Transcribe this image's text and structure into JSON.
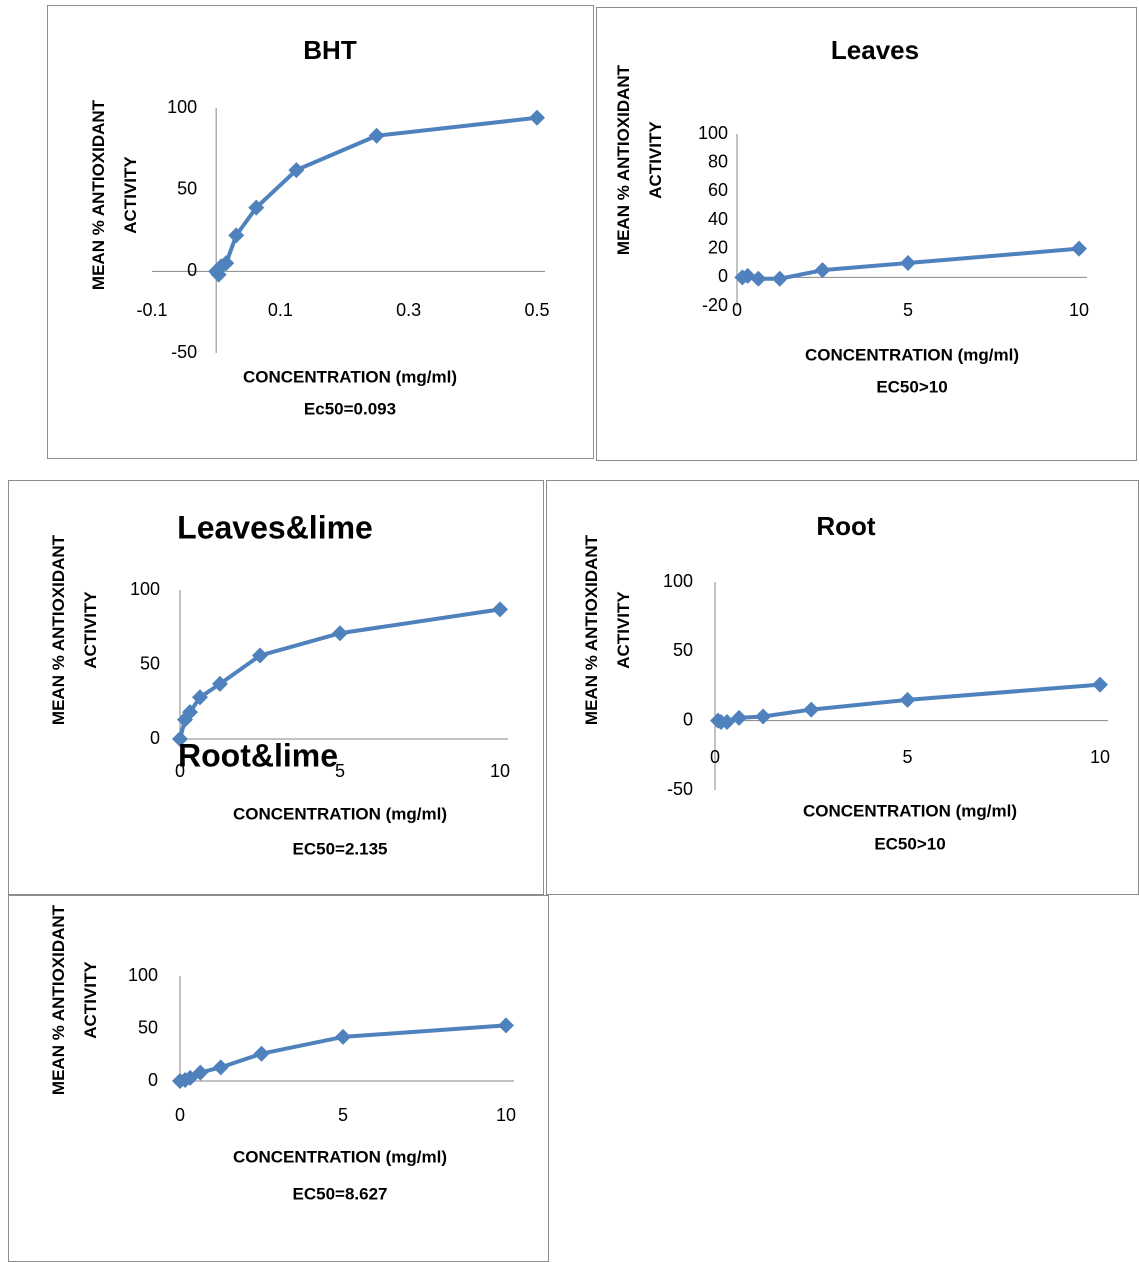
{
  "chart_data": [
    {
      "type": "line",
      "title": "BHT",
      "x_label": "CONCENTRATION (mg/ml)",
      "annotation": "Ec50=0.093",
      "y_label": "MEAN % ANTIOXIDANT ACTIVITY",
      "x": [
        0,
        0.0039,
        0.0078,
        0.0156,
        0.03125,
        0.0625,
        0.125,
        0.25,
        0.5
      ],
      "values": [
        0,
        -2,
        3,
        5,
        22,
        39,
        62,
        83,
        94
      ],
      "color": "#4f81bd",
      "xlim": [
        -0.1,
        0.5
      ],
      "xticks": [
        -0.1,
        0.1,
        0.3,
        0.5
      ],
      "ylim": [
        -50,
        100
      ],
      "yticks": [
        -50,
        0,
        50,
        100
      ]
    },
    {
      "type": "line",
      "title": "Leaves",
      "x_label": "CONCENTRATION (mg/ml)",
      "annotation": "EC50>10",
      "y_label": "MEAN % ANTIOXIDANT ACTIVITY",
      "x": [
        0.156,
        0.3125,
        0.625,
        1.25,
        2.5,
        5,
        10
      ],
      "values": [
        0,
        1,
        -1,
        -1,
        5,
        10,
        20
      ],
      "color": "#4f81bd",
      "xlim": [
        0,
        10
      ],
      "xticks": [
        0,
        5,
        10
      ],
      "ylim": [
        -20,
        100
      ],
      "yticks": [
        -20,
        0,
        20,
        40,
        60,
        80,
        100
      ]
    },
    {
      "type": "line",
      "title": "Leaves&lime",
      "x_label": "CONCENTRATION (mg/ml)",
      "annotation": "EC50=2.135",
      "y_label": "MEAN % ANTIOXIDANT ACTIVITY",
      "x": [
        0,
        0.156,
        0.3125,
        0.625,
        1.25,
        2.5,
        5,
        10
      ],
      "values": [
        0,
        13,
        18,
        28,
        37,
        56,
        71,
        87
      ],
      "color": "#4f81bd",
      "xlim": [
        0,
        10
      ],
      "xticks": [
        0,
        5,
        10
      ],
      "ylim": [
        0,
        100
      ],
      "yticks": [
        0,
        50,
        100
      ]
    },
    {
      "type": "line",
      "title": "Root",
      "x_label": "CONCENTRATION (mg/ml)",
      "annotation": "EC50>10",
      "y_label": "MEAN % ANTIOXIDANT ACTIVITY",
      "x": [
        0.078,
        0.156,
        0.3125,
        0.625,
        1.25,
        2.5,
        5,
        10
      ],
      "values": [
        0,
        -1,
        -1,
        2,
        3,
        8,
        15,
        26
      ],
      "color": "#4f81bd",
      "xlim": [
        0,
        10
      ],
      "xticks": [
        0,
        5,
        10
      ],
      "ylim": [
        -50,
        100
      ],
      "yticks": [
        -50,
        0,
        50,
        100
      ]
    },
    {
      "type": "line",
      "title": "Root&lime",
      "x_label": "CONCENTRATION (mg/ml)",
      "annotation": "EC50=8.627",
      "y_label": "MEAN % ANTIOXIDANT ACTIVITY",
      "x": [
        0,
        0.156,
        0.3125,
        0.625,
        1.25,
        2.5,
        5,
        10
      ],
      "values": [
        0,
        1,
        3,
        8,
        13,
        26,
        42,
        53
      ],
      "color": "#4f81bd",
      "xlim": [
        0,
        10
      ],
      "xticks": [
        0,
        5,
        10
      ],
      "ylim": [
        0,
        100
      ],
      "yticks": [
        0,
        50,
        100
      ]
    }
  ]
}
